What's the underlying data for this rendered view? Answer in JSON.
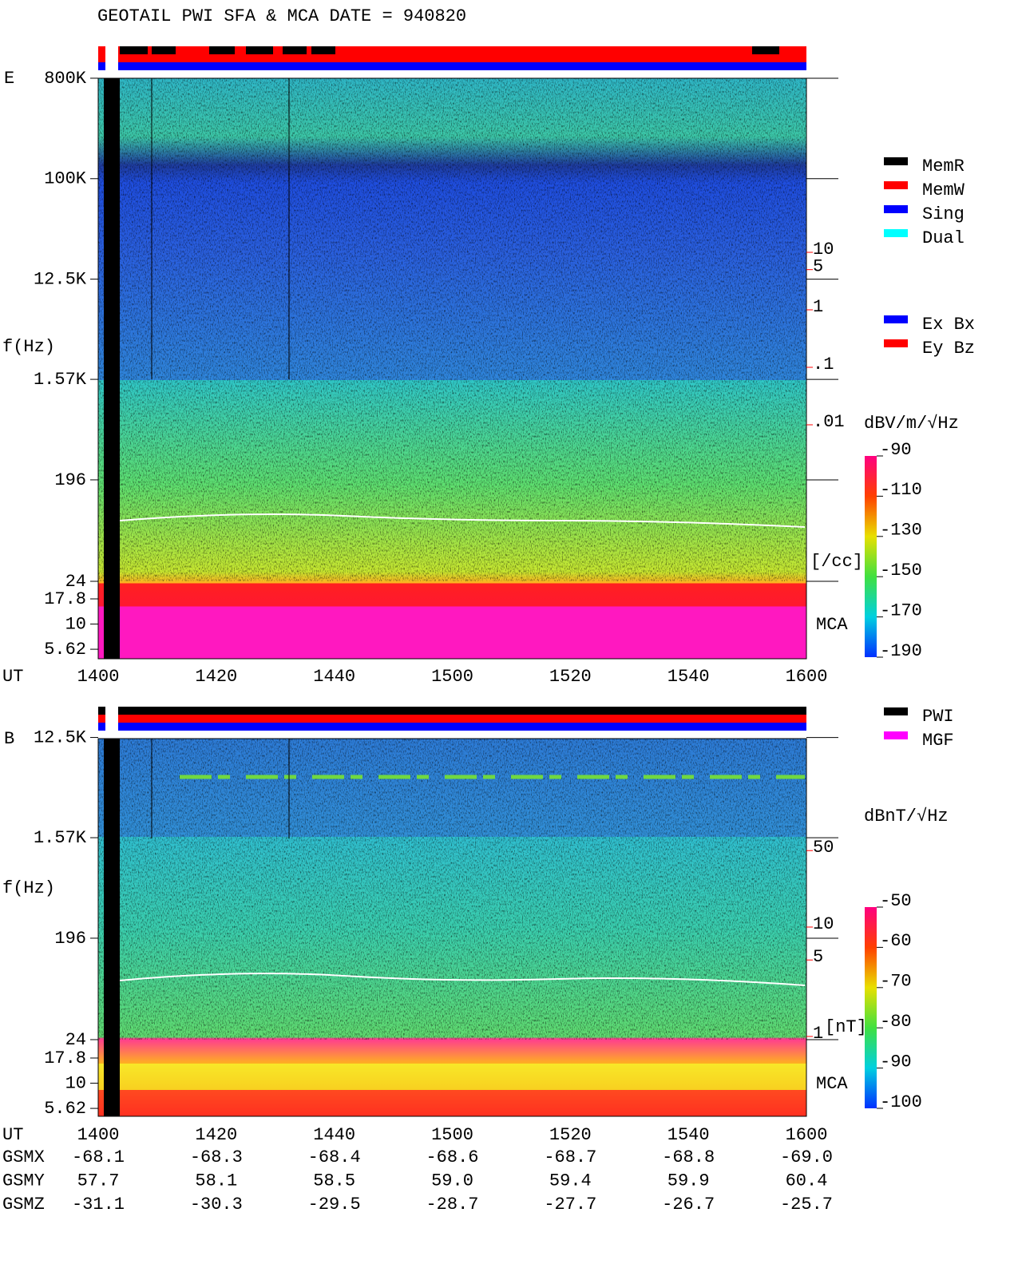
{
  "title": "GEOTAIL  PWI SFA & MCA   DATE = 940820",
  "chart_data": [
    {
      "type": "spectrogram",
      "panel": "E",
      "y_label": "f(Hz)",
      "x_label": "UT",
      "mca_label": "MCA",
      "yticks": [
        {
          "value": 800000,
          "label": "800K"
        },
        {
          "value": 100000,
          "label": "100K"
        },
        {
          "value": 12500,
          "label": "12.5K"
        },
        {
          "value": 1570,
          "label": "1.57K"
        },
        196,
        24,
        17.8,
        10,
        5.62
      ],
      "categories": [
        "1400",
        "1420",
        "1440",
        "1500",
        "1520",
        "1540",
        "1600"
      ],
      "status_legend": [
        {
          "name": "MemR",
          "color": "#000000"
        },
        {
          "name": "MemW",
          "color": "#ff0000"
        },
        {
          "name": "Sing",
          "color": "#0000ff"
        },
        {
          "name": "Dual",
          "color": "#00ffff"
        }
      ],
      "component_legend": [
        {
          "name": "Ex Bx",
          "color": "#0000ff"
        },
        {
          "name": "Ey Bz",
          "color": "#ff0000"
        }
      ],
      "colorbar": {
        "label": "dBV/m/√Hz",
        "ylim": [
          -190,
          -90
        ],
        "yticks": [
          -90,
          -110,
          -130,
          -150,
          -170,
          -190
        ]
      },
      "density_axis": {
        "label": "[/cc]",
        "color": "#ff0000",
        "ticks": [
          10,
          5,
          1,
          {
            "value": 0.1,
            "label": ".1"
          },
          {
            "value": 0.01,
            "label": ".01"
          }
        ]
      }
    },
    {
      "type": "spectrogram",
      "panel": "B",
      "y_label": "f(Hz)",
      "x_label": "UT",
      "mca_label": "MCA",
      "yticks": [
        {
          "value": 12500,
          "label": "12.5K"
        },
        {
          "value": 1570,
          "label": "1.57K"
        },
        196,
        24,
        17.8,
        10,
        5.62
      ],
      "categories": [
        "1400",
        "1420",
        "1440",
        "1500",
        "1520",
        "1540",
        "1600"
      ],
      "status_legend": [
        {
          "name": "PWI",
          "color": "#000000"
        },
        {
          "name": "MGF",
          "color": "#ff00ff"
        }
      ],
      "colorbar": {
        "label": "dBnT/√Hz",
        "ylim": [
          -100,
          -50
        ],
        "yticks": [
          -50,
          -60,
          -70,
          -80,
          -90,
          -100
        ]
      },
      "density_axis": {
        "label": "[nT]",
        "color": "#ff0000",
        "ticks": [
          50,
          10,
          5,
          1
        ]
      }
    }
  ],
  "orbit": {
    "rows": [
      {
        "label": "GSMX",
        "values": [
          "-68.1",
          "-68.3",
          "-68.4",
          "-68.6",
          "-68.7",
          "-68.8",
          "-69.0"
        ]
      },
      {
        "label": "GSMY",
        "values": [
          "57.7",
          "58.1",
          "58.5",
          "59.0",
          "59.4",
          "59.9",
          "60.4"
        ]
      },
      {
        "label": "GSMZ",
        "values": [
          "-31.1",
          "-30.3",
          "-29.5",
          "-28.7",
          "-27.7",
          "-26.7",
          "-25.7"
        ]
      }
    ]
  }
}
